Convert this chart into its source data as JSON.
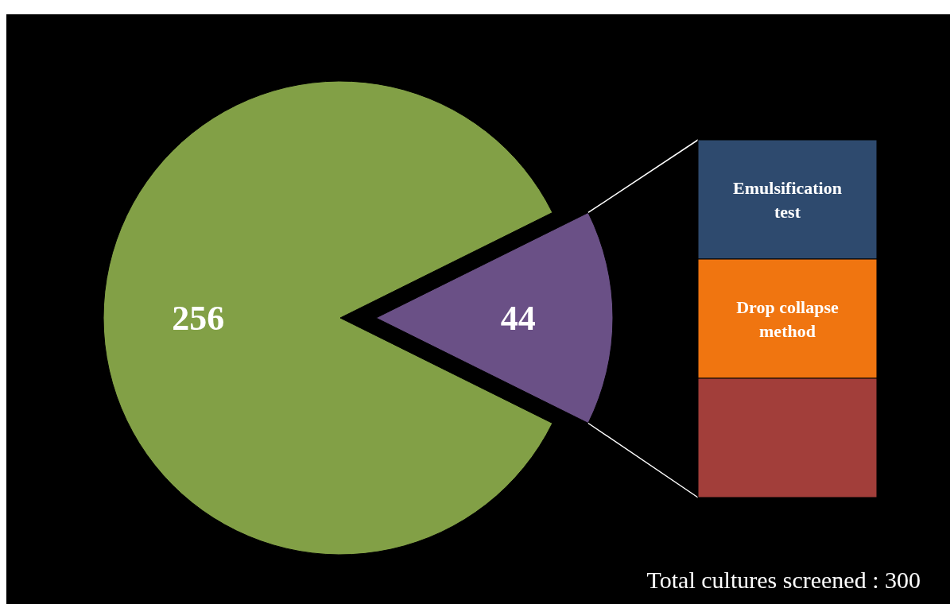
{
  "chart_data": [
    {
      "type": "pie",
      "categories": [
        null,
        null
      ],
      "values": [
        256,
        44
      ],
      "colors": [
        "#82a046",
        "#6a5086"
      ],
      "data_labels": true,
      "annotations": [
        "Total cultures screened : 300"
      ]
    },
    {
      "type": "other",
      "categories": [
        "Emulsification test",
        "Drop collapse method",
        null
      ],
      "colors": [
        "#2e4a6e",
        "#f07510",
        "#a23e3a"
      ]
    }
  ]
}
